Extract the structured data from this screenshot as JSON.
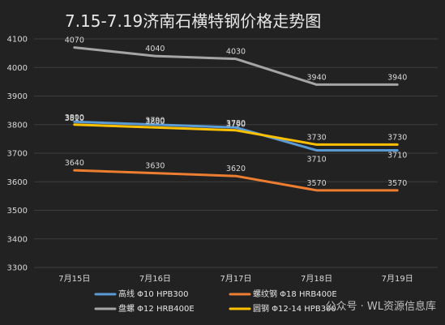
{
  "chart_data": {
    "type": "line",
    "title": "7.15-7.19济南石横特钢价格走势图",
    "categories": [
      "7月15日",
      "7月16日",
      "7月17日",
      "7月18日",
      "7月19日"
    ],
    "ylim": [
      3300,
      4100
    ],
    "yticks": [
      3300,
      3400,
      3500,
      3600,
      3700,
      3800,
      3900,
      4000,
      4100
    ],
    "grid": true,
    "legend_position": "bottom",
    "series": [
      {
        "name": "高线 Φ10 HPB300",
        "color": "#5b9bd5",
        "values": [
          3810,
          3800,
          3790,
          3710,
          3710
        ],
        "labels": [
          "3810",
          "3800",
          "3790",
          "3710",
          "3710"
        ]
      },
      {
        "name": "螺纹钢 Φ18 HRB400E",
        "color": "#ed7d31",
        "values": [
          3640,
          3630,
          3620,
          3570,
          3570
        ],
        "labels": [
          "3640",
          "3630",
          "3620",
          "3570",
          "3570"
        ]
      },
      {
        "name": "盘螺 Φ12 HRB400E",
        "color": "#a5a5a5",
        "values": [
          4070,
          4040,
          4030,
          3940,
          3940
        ],
        "labels": [
          "4070",
          "4040",
          "4030",
          "3940",
          "3940"
        ]
      },
      {
        "name": "圆钢 Φ12-14 HPB300",
        "color": "#ffc000",
        "values": [
          3800,
          3790,
          3780,
          3730,
          3730
        ],
        "labels": [
          "3800",
          "3790",
          "3780",
          "3730",
          "3730"
        ]
      }
    ]
  },
  "watermark": "公众号 · WL资源信息库"
}
